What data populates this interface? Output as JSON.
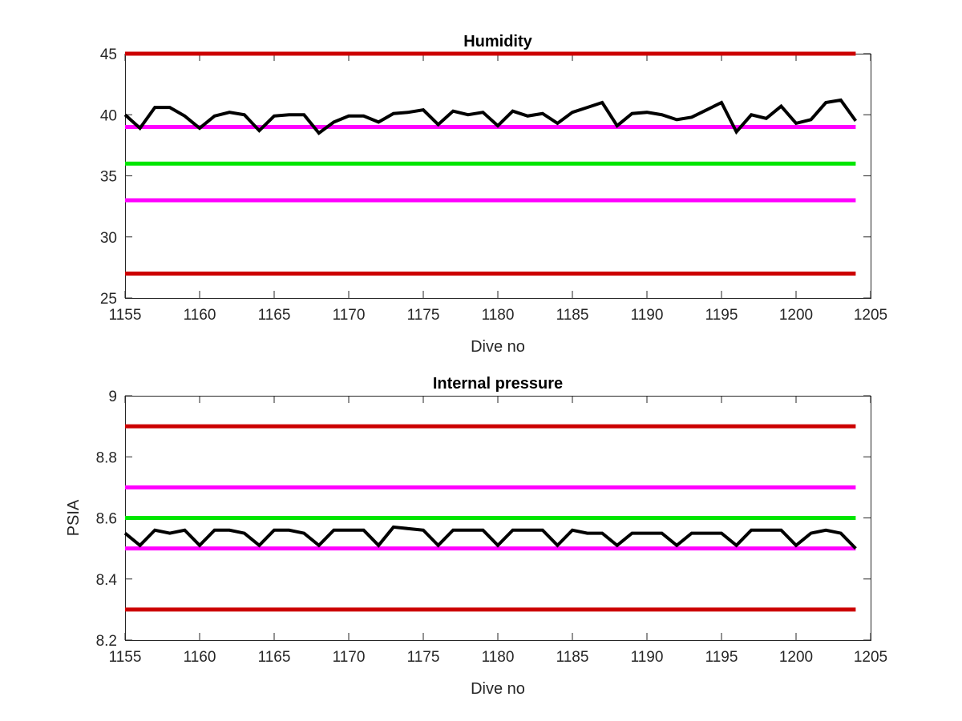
{
  "chart_data": [
    {
      "type": "line",
      "title": "Humidity",
      "xlabel": "Dive no",
      "ylabel": "",
      "xlim": [
        1155,
        1205
      ],
      "ylim": [
        25,
        45
      ],
      "xticks": [
        "1155",
        "1160",
        "1165",
        "1170",
        "1175",
        "1180",
        "1185",
        "1190",
        "1195",
        "1200",
        "1205"
      ],
      "yticks": [
        "25",
        "30",
        "35",
        "40",
        "45"
      ],
      "grid": false,
      "x": [
        1155,
        1156,
        1157,
        1158,
        1159,
        1160,
        1161,
        1162,
        1163,
        1164,
        1165,
        1166,
        1167,
        1168,
        1169,
        1170,
        1171,
        1172,
        1173,
        1174,
        1175,
        1176,
        1177,
        1178,
        1179,
        1180,
        1181,
        1182,
        1183,
        1184,
        1185,
        1186,
        1187,
        1188,
        1189,
        1190,
        1191,
        1192,
        1193,
        1194,
        1195,
        1196,
        1197,
        1198,
        1199,
        1200,
        1201,
        1202,
        1203,
        1204
      ],
      "series": [
        {
          "color": "#000000",
          "values": [
            40.0,
            38.9,
            40.6,
            40.6,
            39.9,
            38.9,
            39.9,
            40.2,
            40.0,
            38.7,
            39.9,
            40.0,
            40.0,
            38.5,
            39.4,
            39.9,
            39.9,
            39.4,
            40.1,
            40.2,
            40.4,
            39.2,
            40.3,
            40.0,
            40.2,
            39.1,
            40.3,
            39.9,
            40.1,
            39.3,
            40.2,
            40.6,
            41.0,
            39.1,
            40.1,
            40.2,
            40.0,
            39.6,
            39.8,
            40.4,
            41.0,
            38.6,
            40.0,
            39.7,
            40.7,
            39.3,
            39.6,
            41.0,
            41.2,
            39.5
          ]
        }
      ],
      "reference_lines": [
        {
          "value": 45,
          "color": "#cc0000"
        },
        {
          "value": 39,
          "color": "#ff00ff"
        },
        {
          "value": 36,
          "color": "#00e600"
        },
        {
          "value": 33,
          "color": "#ff00ff"
        },
        {
          "value": 27,
          "color": "#cc0000"
        }
      ]
    },
    {
      "type": "line",
      "title": "Internal pressure",
      "xlabel": "Dive no",
      "ylabel": "PSIA",
      "xlim": [
        1155,
        1205
      ],
      "ylim": [
        8.2,
        9
      ],
      "xticks": [
        "1155",
        "1160",
        "1165",
        "1170",
        "1175",
        "1180",
        "1185",
        "1190",
        "1195",
        "1200",
        "1205"
      ],
      "yticks": [
        "8.2",
        "8.4",
        "8.6",
        "8.8",
        "9"
      ],
      "grid": false,
      "x": [
        1155,
        1156,
        1157,
        1158,
        1159,
        1160,
        1161,
        1162,
        1163,
        1164,
        1165,
        1166,
        1167,
        1168,
        1169,
        1170,
        1171,
        1172,
        1173,
        1174,
        1175,
        1176,
        1177,
        1178,
        1179,
        1180,
        1181,
        1182,
        1183,
        1184,
        1185,
        1186,
        1187,
        1188,
        1189,
        1190,
        1191,
        1192,
        1193,
        1194,
        1195,
        1196,
        1197,
        1198,
        1199,
        1200,
        1201,
        1202,
        1203,
        1204
      ],
      "series": [
        {
          "color": "#000000",
          "values": [
            8.55,
            8.51,
            8.56,
            8.55,
            8.56,
            8.51,
            8.56,
            8.56,
            8.55,
            8.51,
            8.56,
            8.56,
            8.55,
            8.51,
            8.56,
            8.56,
            8.56,
            8.51,
            8.57,
            8.565,
            8.56,
            8.51,
            8.56,
            8.56,
            8.56,
            8.51,
            8.56,
            8.56,
            8.56,
            8.51,
            8.56,
            8.55,
            8.55,
            8.51,
            8.55,
            8.55,
            8.55,
            8.51,
            8.55,
            8.55,
            8.55,
            8.51,
            8.56,
            8.56,
            8.56,
            8.51,
            8.55,
            8.56,
            8.55,
            8.5
          ]
        }
      ],
      "reference_lines": [
        {
          "value": 8.9,
          "color": "#cc0000"
        },
        {
          "value": 8.7,
          "color": "#ff00ff"
        },
        {
          "value": 8.6,
          "color": "#00e600"
        },
        {
          "value": 8.5,
          "color": "#ff00ff"
        },
        {
          "value": 8.3,
          "color": "#cc0000"
        }
      ]
    }
  ]
}
